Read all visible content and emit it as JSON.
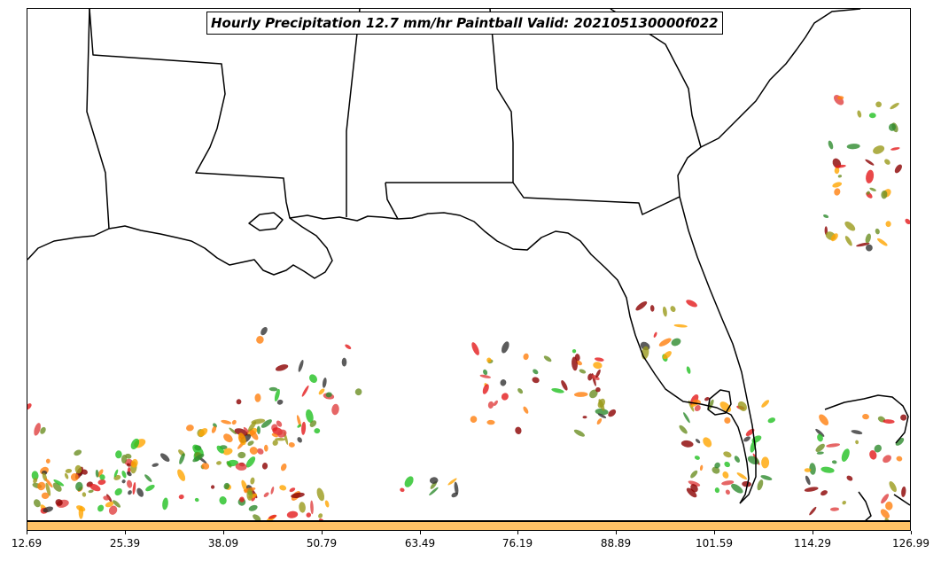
{
  "title": "Hourly Precipitation 12.7 mm/hr Paintball Valid: 202105130000f022",
  "colorbar": {
    "color": "#ffc266",
    "tick_labels": [
      "12.69",
      "25.39",
      "38.09",
      "50.79",
      "63.49",
      "76.19",
      "88.89",
      "101.59",
      "114.29",
      "126.99"
    ]
  },
  "member_colors": [
    "#22c022",
    "#ff7f0e",
    "#e41a1c",
    "#8b0000",
    "#2e8b2e",
    "#9a9a1a",
    "#333333",
    "#ffa500",
    "#e04040",
    "#6b8e23"
  ],
  "map": {
    "region": "Southeastern United States and Gulf of Mexico",
    "features": [
      "state-borders",
      "coastline",
      "lakes"
    ]
  }
}
